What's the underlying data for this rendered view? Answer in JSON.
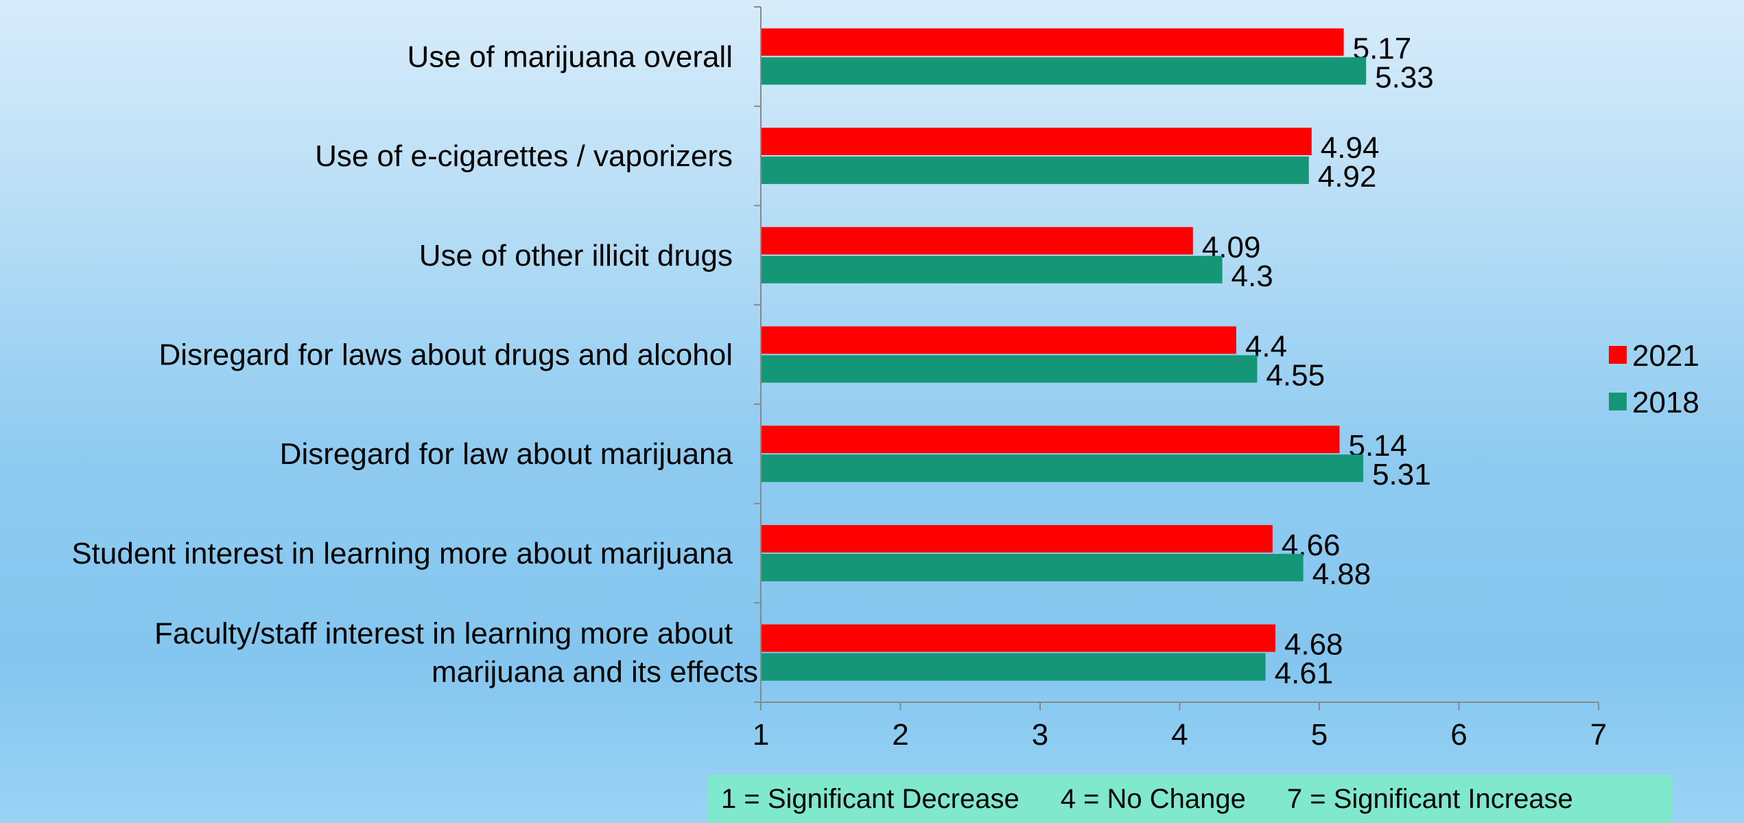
{
  "chart_data": {
    "type": "bar",
    "orientation": "horizontal",
    "categories": [
      "Use of marijuana overall",
      "Use of e-cigarettes / vaporizers",
      "Use of other illicit drugs",
      "Disregard for laws about drugs and alcohol",
      "Disregard for law about marijuana",
      "Student interest in learning more about marijuana",
      "Faculty/staff interest in learning more about marijuana and its effects"
    ],
    "category_lines": [
      [
        "Use of marijuana overall"
      ],
      [
        "Use of e-cigarettes / vaporizers"
      ],
      [
        "Use of other illicit drugs"
      ],
      [
        "Disregard for laws about drugs and alcohol"
      ],
      [
        "Disregard for law about marijuana"
      ],
      [
        "Student interest in learning more about marijuana"
      ],
      [
        "Faculty/staff interest in learning more about",
        "marijuana and its effects"
      ]
    ],
    "series": [
      {
        "name": "2021",
        "color": "#ff0000",
        "values": [
          5.17,
          4.94,
          4.09,
          4.4,
          5.14,
          4.66,
          4.68
        ],
        "labels": [
          "5.17",
          "4.94",
          "4.09",
          "4.4",
          "5.14",
          "4.66",
          "4.68"
        ]
      },
      {
        "name": "2018",
        "color": "#149677",
        "values": [
          5.33,
          4.92,
          4.3,
          4.55,
          5.31,
          4.88,
          4.61
        ],
        "labels": [
          "5.33",
          "4.92",
          "4.3",
          "4.55",
          "5.31",
          "4.88",
          "4.61"
        ]
      }
    ],
    "xlim": [
      1,
      7
    ],
    "xticks": [
      "1",
      "2",
      "3",
      "4",
      "5",
      "6",
      "7"
    ],
    "grid": false,
    "legend_position": "right",
    "title": "",
    "xlabel": "",
    "ylabel": ""
  },
  "scale_note": {
    "decrease": "1 = Significant Decrease",
    "no_change": "4 = No Change",
    "increase": "7 = Significant Increase"
  }
}
